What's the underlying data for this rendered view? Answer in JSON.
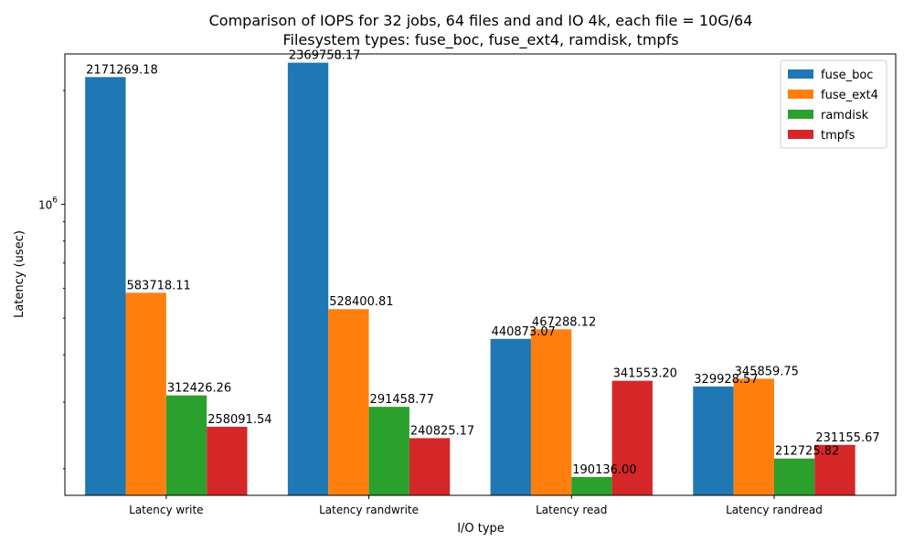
{
  "chart_data": {
    "type": "bar",
    "title": "Comparison of IOPS for 32 jobs, 64 files and  and IO 4k, each file = 10G/64",
    "subtitle": "Filesystem types: fuse_boc, fuse_ext4, ramdisk, tmpfs",
    "xlabel": "I/O type",
    "ylabel": "Latency (usec)",
    "yscale": "log",
    "ylim": [
      170000,
      2500000
    ],
    "yticks": [
      {
        "value": 1000000,
        "base": "10",
        "exp": "6"
      }
    ],
    "categories": [
      "Latency write",
      "Latency randwrite",
      "Latency read",
      "Latency randread"
    ],
    "series": [
      {
        "name": "fuse_boc",
        "color": "#1f77b4",
        "values": [
          2171269.18,
          2369758.17,
          440873.07,
          329928.57
        ]
      },
      {
        "name": "fuse_ext4",
        "color": "#ff7f0e",
        "values": [
          583718.11,
          528400.81,
          467288.12,
          345859.75
        ]
      },
      {
        "name": "ramdisk",
        "color": "#2ca02c",
        "values": [
          312426.26,
          291458.77,
          190136.0,
          212725.82
        ]
      },
      {
        "name": "tmpfs",
        "color": "#d62728",
        "values": [
          258091.54,
          240825.17,
          341553.2,
          231155.67
        ]
      }
    ],
    "data_labels": [
      [
        "2171269.18",
        "2369758.17",
        "440873.07",
        "329928.57"
      ],
      [
        "583718.11",
        "528400.81",
        "467288.12",
        "345859.75"
      ],
      [
        "312426.26",
        "291458.77",
        "190136.00",
        "212725.82"
      ],
      [
        "258091.54",
        "240825.17",
        "341553.20",
        "231155.67"
      ]
    ],
    "legend_position": "top-right",
    "grid": false
  }
}
